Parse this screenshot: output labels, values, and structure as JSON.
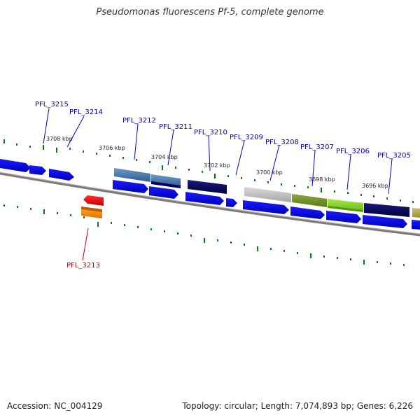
{
  "title": "Pseudomonas fluorescens Pf-5, complete genome",
  "footer": {
    "accession": "Accession: NC_004129",
    "summary": "Topology: circular; Length: 7,074,893 bp; Genes: 6,226"
  },
  "scale_labels": [
    "3708 kbp",
    "3706 kbp",
    "3704 kbp",
    "3702 kbp",
    "3700 kbp",
    "3698 kbp",
    "3696 kbp"
  ],
  "gene_labels": [
    "PFL_3215",
    "PFL_3214",
    "PFL_3212",
    "PFL_3211",
    "PFL_3210",
    "PFL_3209",
    "PFL_3208",
    "PFL_3207",
    "PFL_3206",
    "PFL_3205",
    "PFL_3213"
  ],
  "colors": {
    "backbone": "#808080",
    "forward_cds": "#0000ee",
    "reverse_label": "#cc0000",
    "forward_label": "#0000aa",
    "tick": "#0a7a0a"
  }
}
